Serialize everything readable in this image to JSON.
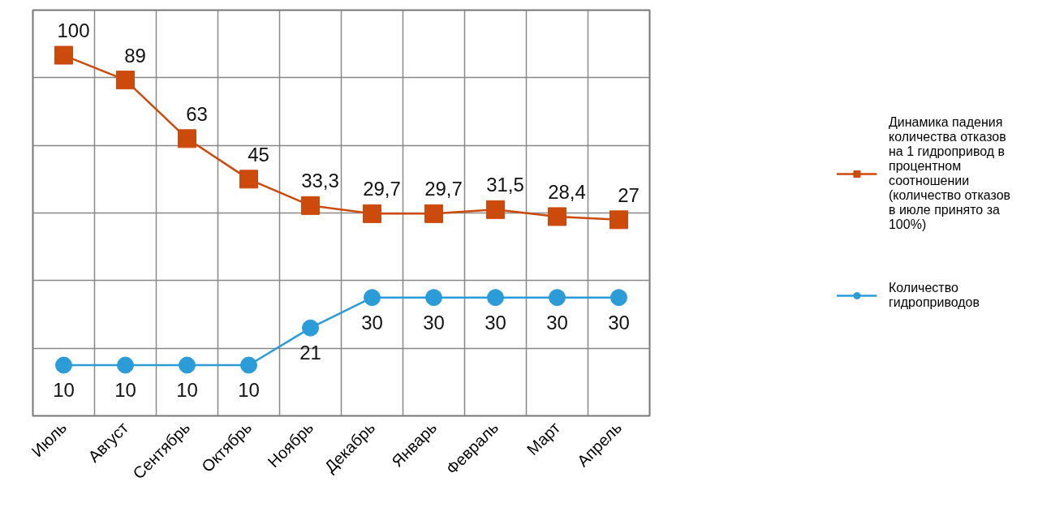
{
  "chart_data": {
    "type": "line",
    "categories": [
      "Июль",
      "Август",
      "Сентябрь",
      "Октябрь",
      "Ноябрь",
      "Декабрь",
      "Январь",
      "Февраль",
      "Март",
      "Апрель"
    ],
    "series": [
      {
        "name": "Динамика падения количества отказов на 1 гидропривод в процентном соотношении (количество отказов в июле принято за 100%)",
        "color": "#cc4a0c",
        "marker": "square",
        "axis": "y2",
        "values": [
          100,
          89,
          63,
          45,
          33.3,
          29.7,
          29.7,
          31.5,
          28.4,
          27
        ],
        "value_labels": [
          "100",
          "89",
          "63",
          "45",
          "33,3",
          "29,7",
          "29,7",
          "31,5",
          "28,4",
          "27"
        ]
      },
      {
        "name": "Количество гидроприводов",
        "color": "#2b9cd8",
        "marker": "circle",
        "values": [
          10,
          10,
          10,
          10,
          21,
          30,
          30,
          30,
          30,
          30
        ],
        "value_labels": [
          "10",
          "10",
          "10",
          "10",
          "21",
          "30",
          "30",
          "30",
          "30",
          "30"
        ]
      }
    ],
    "ylim": [
      -5,
      115
    ],
    "yticks": [
      {
        "value": -5,
        "label": null
      },
      {
        "value": 15,
        "label": null
      },
      {
        "value": 35,
        "label": null
      },
      {
        "value": 55,
        "label": null
      },
      {
        "value": 75,
        "label": null
      },
      {
        "value": 95,
        "label": null
      },
      {
        "value": 115,
        "label": null
      }
    ],
    "y2lim": [
      -60,
      120
    ],
    "tick_labels": "x",
    "grid": true,
    "legend": "right",
    "line_style": "solid"
  }
}
